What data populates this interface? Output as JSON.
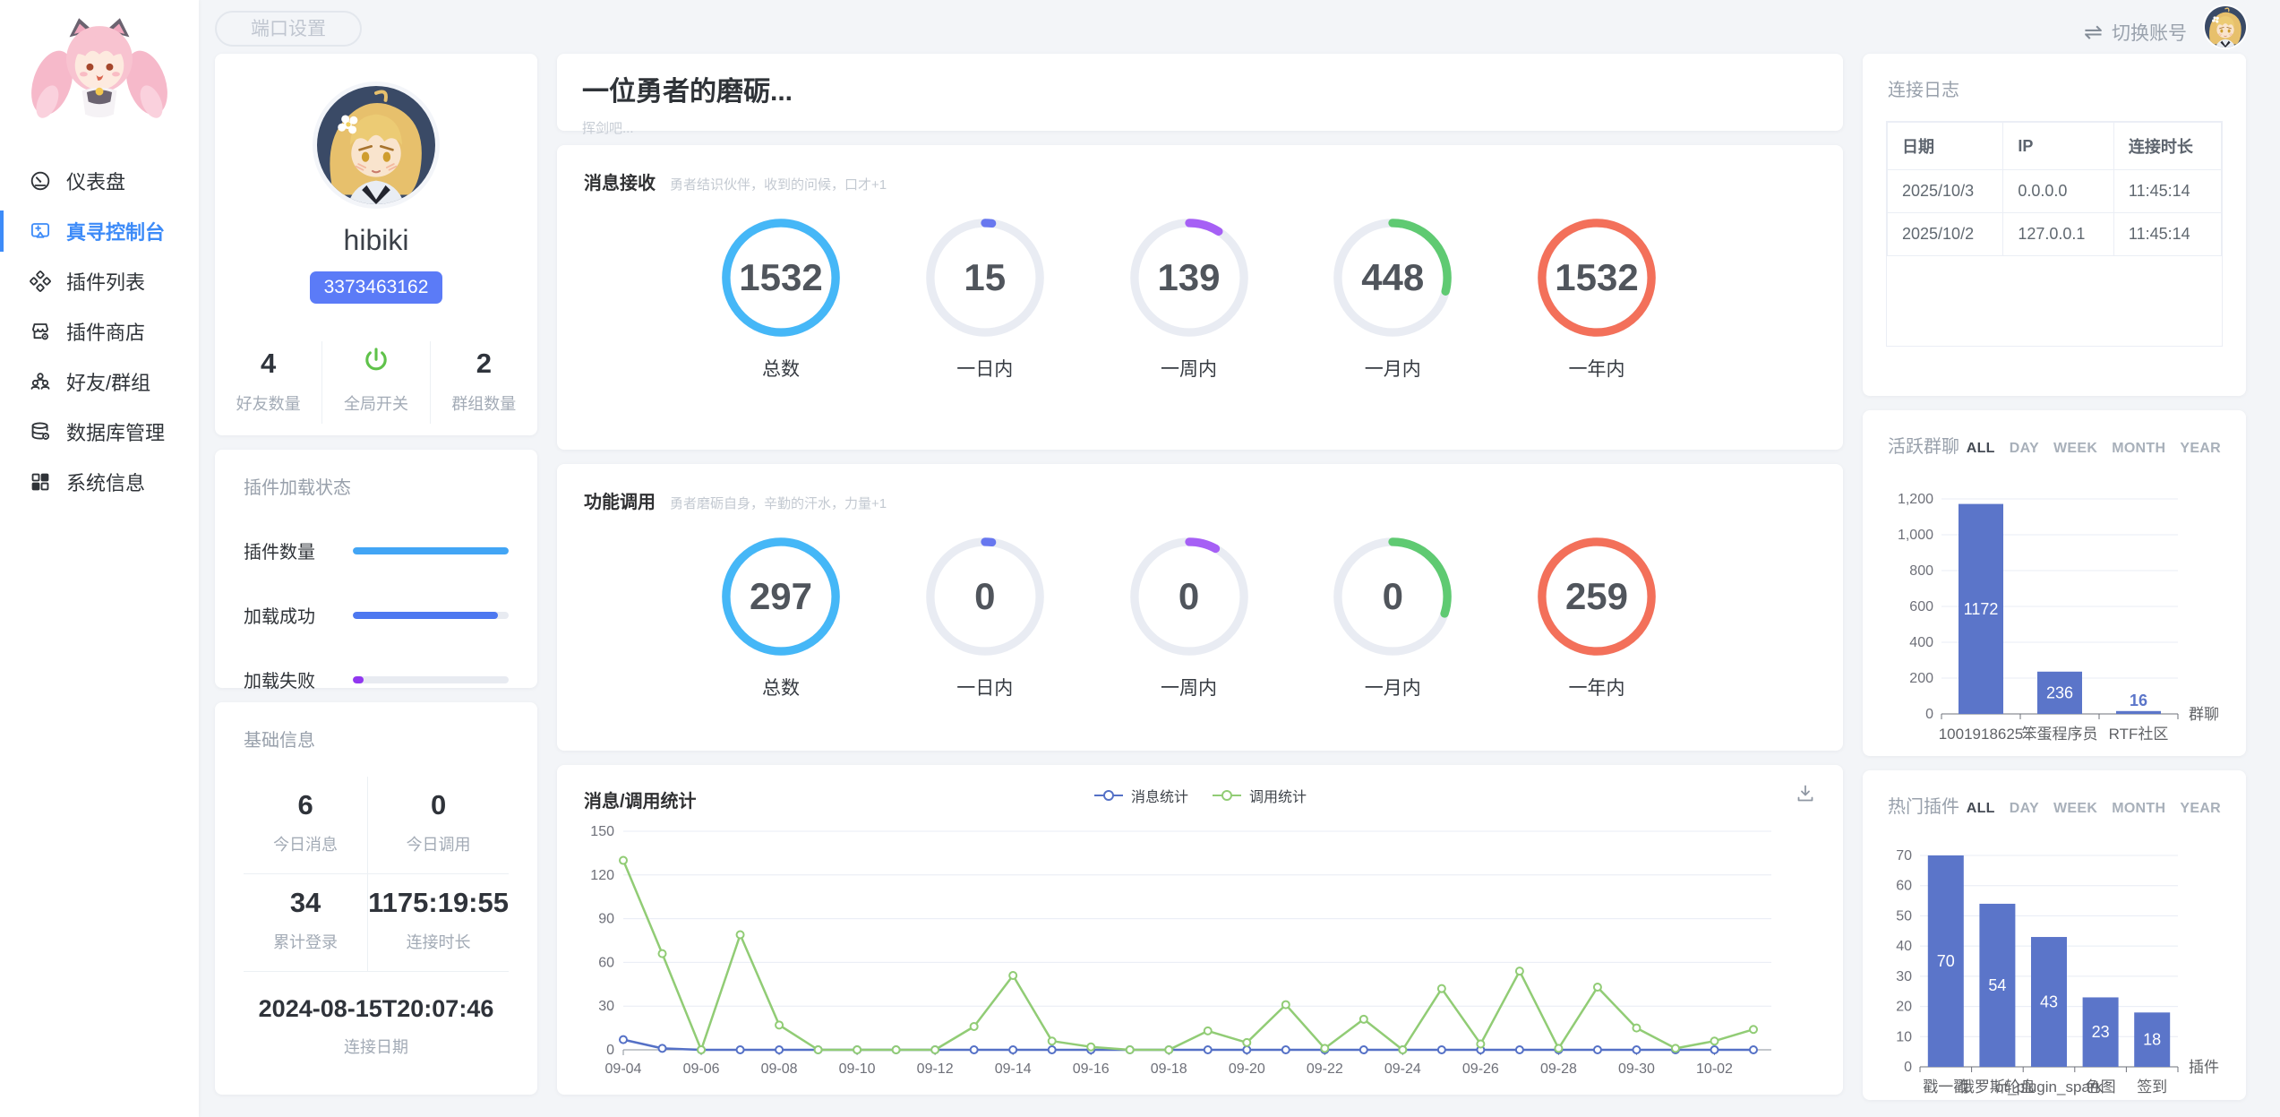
{
  "topbar": {
    "port_settings": "端口设置",
    "switch_label": "切换账号"
  },
  "sidebar": {
    "items": [
      {
        "label": "仪表盘",
        "icon": "gauge-icon",
        "active": false
      },
      {
        "label": "真寻控制台",
        "icon": "console-icon",
        "active": true
      },
      {
        "label": "插件列表",
        "icon": "plugin-list-icon",
        "active": false
      },
      {
        "label": "插件商店",
        "icon": "plugin-store-icon",
        "active": false
      },
      {
        "label": "好友/群组",
        "icon": "friends-icon",
        "active": false
      },
      {
        "label": "数据库管理",
        "icon": "database-icon",
        "active": false
      },
      {
        "label": "系统信息",
        "icon": "system-info-icon",
        "active": false
      }
    ]
  },
  "profile": {
    "name": "hibiki",
    "qq": "3373463162",
    "stats": [
      {
        "value": "4",
        "label": "好友数量"
      },
      {
        "icon": "power-icon",
        "label": "全局开关"
      },
      {
        "value": "2",
        "label": "群组数量"
      }
    ]
  },
  "plugin_status": {
    "title": "插件加载状态",
    "rows": [
      {
        "label": "插件数量",
        "pct": 100,
        "color": "#42a5f5"
      },
      {
        "label": "加载成功",
        "pct": 93,
        "color": "#4d78f0"
      },
      {
        "label": "加载失败",
        "pct": 7,
        "color": "#9137f0"
      }
    ]
  },
  "basic_info": {
    "title": "基础信息",
    "cells": [
      {
        "value": "6",
        "label": "今日消息"
      },
      {
        "value": "0",
        "label": "今日调用"
      },
      {
        "value": "34",
        "label": "累计登录"
      },
      {
        "value": "1175:19:55",
        "label": "连接时长"
      }
    ],
    "date": "2024-08-15T20:07:46",
    "date_label": "连接日期"
  },
  "hero": {
    "title": "一位勇者的磨砺...",
    "subtitle": "挥剑吧..."
  },
  "message_stats": {
    "title": "消息接收",
    "subtitle": "勇者结识伙伴，收到的问候，口才+1",
    "rings": [
      {
        "value": "1532",
        "label": "总数",
        "pct": 100,
        "color": "#45b7f7"
      },
      {
        "value": "15",
        "label": "一日内",
        "pct": 2,
        "color": "#6777ef"
      },
      {
        "value": "139",
        "label": "一周内",
        "pct": 9,
        "color": "#a660f5"
      },
      {
        "value": "448",
        "label": "一月内",
        "pct": 29,
        "color": "#5fca72"
      },
      {
        "value": "1532",
        "label": "一年内",
        "pct": 100,
        "color": "#f3705a"
      }
    ]
  },
  "call_stats": {
    "title": "功能调用",
    "subtitle": "勇者磨砺自身，辛勤的汗水，力量+1",
    "rings": [
      {
        "value": "297",
        "label": "总数",
        "pct": 100,
        "color": "#45b7f7"
      },
      {
        "value": "0",
        "label": "一日内",
        "pct": 2,
        "color": "#6777ef"
      },
      {
        "value": "0",
        "label": "一周内",
        "pct": 8,
        "color": "#a660f5"
      },
      {
        "value": "0",
        "label": "一月内",
        "pct": 30,
        "color": "#5fca72"
      },
      {
        "value": "259",
        "label": "一年内",
        "pct": 100,
        "color": "#f3705a"
      }
    ]
  },
  "connection_log": {
    "title": "连接日志",
    "headers": [
      "日期",
      "IP",
      "连接时长"
    ],
    "rows": [
      [
        "2025/10/3",
        "0.0.0.0",
        "11:45:14"
      ],
      [
        "2025/10/2",
        "127.0.0.1",
        "11:45:14"
      ]
    ]
  },
  "active_groups": {
    "title": "活跃群聊",
    "tabs": [
      "ALL",
      "DAY",
      "WEEK",
      "MONTH",
      "YEAR"
    ],
    "active_tab": "ALL"
  },
  "hot_plugins": {
    "title": "热门插件",
    "tabs": [
      "ALL",
      "DAY",
      "WEEK",
      "MONTH",
      "YEAR"
    ],
    "active_tab": "ALL"
  },
  "chart_data": [
    {
      "id": "message_call_trend",
      "type": "line",
      "title": "消息/调用统计",
      "legend_position": "top-center",
      "grid": true,
      "x": [
        "09-04",
        "09-05",
        "09-06",
        "09-07",
        "09-08",
        "09-09",
        "09-10",
        "09-11",
        "09-12",
        "09-13",
        "09-14",
        "09-15",
        "09-16",
        "09-17",
        "09-18",
        "09-19",
        "09-20",
        "09-21",
        "09-22",
        "09-23",
        "09-24",
        "09-25",
        "09-26",
        "09-27",
        "09-28",
        "09-29",
        "09-30",
        "10-01",
        "10-02",
        "10-03"
      ],
      "x_label_every": 2,
      "ylim": [
        0,
        150
      ],
      "yticks": [
        0,
        30,
        60,
        90,
        120,
        150
      ],
      "series": [
        {
          "name": "消息统计",
          "color": "#5470c6",
          "values": [
            7,
            1,
            0,
            0,
            0,
            0,
            0,
            0,
            0,
            0,
            0,
            0,
            0,
            0,
            0,
            0,
            0,
            0,
            0,
            0,
            0,
            0,
            0,
            0,
            0,
            0,
            0,
            0,
            0,
            0
          ]
        },
        {
          "name": "调用统计",
          "color": "#91cc75",
          "values": [
            130,
            66,
            0,
            79,
            17,
            0,
            0,
            0,
            0,
            16,
            51,
            6,
            2,
            0,
            0,
            13,
            5,
            31,
            1,
            21,
            0,
            42,
            4,
            54,
            1,
            43,
            15,
            1,
            6,
            14
          ]
        }
      ]
    },
    {
      "id": "active_groups",
      "type": "bar",
      "xlabel": "群聊",
      "bar_color": "#5b75c9",
      "ylim": [
        0,
        1200
      ],
      "yticks": [
        0,
        200,
        400,
        600,
        800,
        1000,
        1200
      ],
      "categories": [
        "1001918625",
        "笨蛋程序员",
        "RTF社区"
      ],
      "values": [
        1172,
        236,
        16
      ]
    },
    {
      "id": "hot_plugins",
      "type": "bar",
      "xlabel": "插件",
      "bar_color": "#5b75c9",
      "ylim": [
        0,
        70
      ],
      "yticks": [
        0,
        10,
        20,
        30,
        40,
        50,
        60,
        70
      ],
      "categories": [
        "戳一戳",
        "俄罗斯轮盘",
        "ot_plugin_spark",
        "色图",
        "签到"
      ],
      "values": [
        70,
        54,
        43,
        23,
        18
      ]
    }
  ],
  "colors": {
    "accent": "#3d8bf8",
    "badge": "#5b7bf7",
    "background": "#f3f5f8",
    "card": "#ffffff"
  }
}
